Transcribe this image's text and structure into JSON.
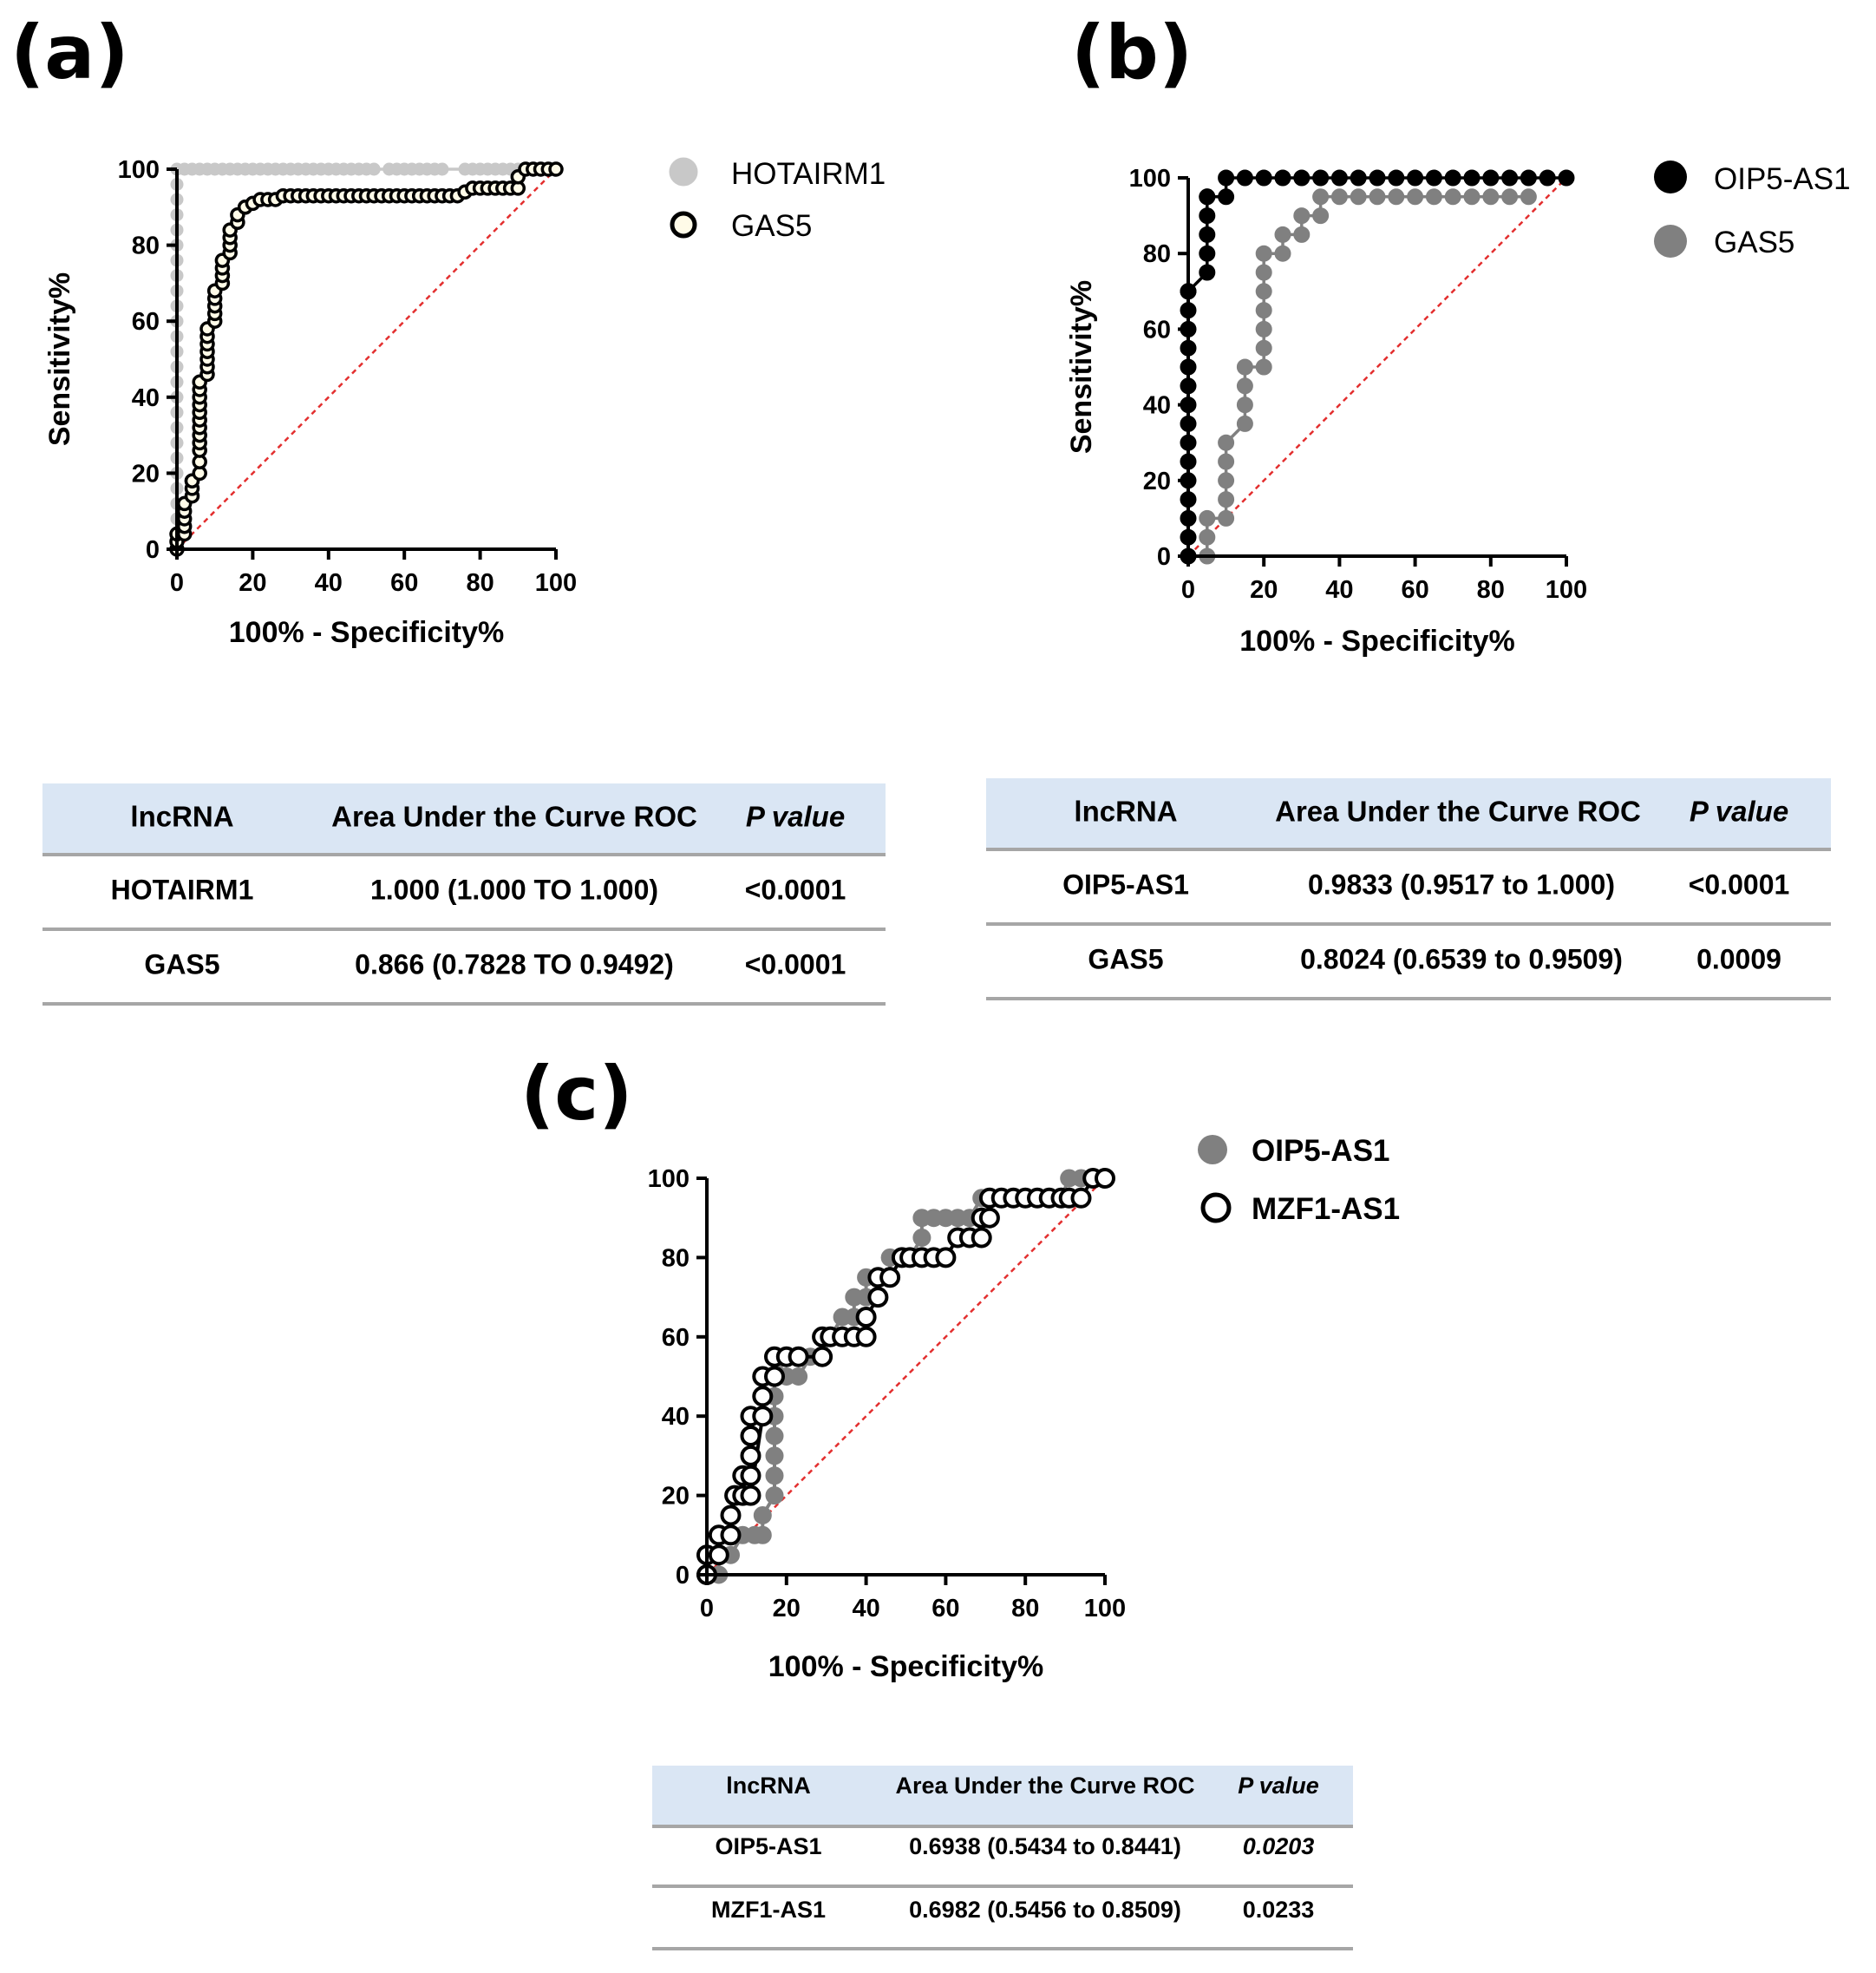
{
  "chart_data": [
    {
      "type": "scatter",
      "panel_label": "(a)",
      "xlabel": "100% - Specificity%",
      "ylabel": "Sensitivity%",
      "xlim": [
        0,
        100
      ],
      "ylim": [
        0,
        100
      ],
      "xticks": [
        0,
        20,
        40,
        60,
        80,
        100
      ],
      "yticks": [
        0,
        20,
        40,
        60,
        80,
        100
      ],
      "diagonal_color": "#e32f2f",
      "series": [
        {
          "name": "HOTAIRM1",
          "style": "filled",
          "fill": "#c8c8c8",
          "stroke": "#c8c8c8",
          "x": [
            0,
            0,
            0,
            0,
            0,
            0,
            0,
            0,
            0,
            0,
            0,
            0,
            0,
            0,
            0,
            0,
            0,
            0,
            0,
            0,
            0,
            0,
            0,
            0,
            0,
            0,
            2,
            4,
            6,
            8,
            10,
            12,
            14,
            16,
            18,
            20,
            22,
            24,
            26,
            28,
            30,
            32,
            34,
            36,
            38,
            40,
            42,
            44,
            46,
            48,
            50,
            52,
            56,
            58,
            60,
            62,
            64,
            66,
            68,
            70,
            76,
            78,
            80,
            82,
            84,
            86,
            88,
            90,
            92,
            94,
            96,
            98
          ],
          "y": [
            0,
            4,
            8,
            12,
            16,
            20,
            24,
            28,
            32,
            36,
            40,
            44,
            48,
            52,
            56,
            60,
            64,
            68,
            72,
            76,
            80,
            84,
            88,
            92,
            96,
            100,
            100,
            100,
            100,
            100,
            100,
            100,
            100,
            100,
            100,
            100,
            100,
            100,
            100,
            100,
            100,
            100,
            100,
            100,
            100,
            100,
            100,
            100,
            100,
            100,
            100,
            100,
            100,
            100,
            100,
            100,
            100,
            100,
            100,
            100,
            100,
            100,
            100,
            100,
            100,
            100,
            100,
            100,
            100,
            100,
            100,
            100
          ]
        },
        {
          "name": "GAS5",
          "style": "open",
          "fill": "#fffbe8",
          "stroke": "#000000",
          "x": [
            0,
            0,
            0,
            2,
            2,
            2,
            2,
            2,
            4,
            4,
            4,
            4,
            6,
            6,
            6,
            6,
            6,
            6,
            6,
            6,
            6,
            6,
            6,
            6,
            8,
            8,
            8,
            8,
            8,
            8,
            8,
            10,
            10,
            10,
            10,
            10,
            12,
            12,
            12,
            12,
            14,
            14,
            14,
            14,
            16,
            16,
            18,
            18,
            20,
            22,
            24,
            26,
            28,
            30,
            32,
            34,
            36,
            38,
            40,
            42,
            44,
            46,
            48,
            50,
            52,
            54,
            56,
            58,
            60,
            62,
            64,
            66,
            68,
            70,
            72,
            74,
            76,
            78,
            80,
            82,
            84,
            86,
            88,
            90,
            90,
            92,
            94,
            96,
            98,
            100
          ],
          "y": [
            0,
            2,
            4,
            4,
            6,
            8,
            10,
            12,
            14,
            16,
            18,
            18,
            20,
            23,
            26,
            28,
            30,
            32,
            34,
            36,
            38,
            40,
            42,
            44,
            46,
            48,
            50,
            52,
            54,
            56,
            58,
            60,
            62,
            64,
            66,
            68,
            70,
            72,
            74,
            76,
            78,
            80,
            82,
            84,
            86,
            88,
            90,
            90,
            91,
            92,
            92,
            92,
            93,
            93,
            93,
            93,
            93,
            93,
            93,
            93,
            93,
            93,
            93,
            93,
            93,
            93,
            93,
            93,
            93,
            93,
            93,
            93,
            93,
            93,
            93,
            93,
            94,
            95,
            95,
            95,
            95,
            95,
            95,
            95,
            98,
            100,
            100,
            100,
            100,
            100
          ]
        }
      ]
    },
    {
      "type": "scatter",
      "panel_label": "(b)",
      "xlabel": "100% - Specificity%",
      "ylabel": "Sensitivity%",
      "xlim": [
        0,
        100
      ],
      "ylim": [
        0,
        100
      ],
      "xticks": [
        0,
        20,
        40,
        60,
        80,
        100
      ],
      "yticks": [
        0,
        20,
        40,
        60,
        80,
        100
      ],
      "diagonal_color": "#e32f2f",
      "series": [
        {
          "name": "OIP5-AS1",
          "style": "filled",
          "fill": "#000000",
          "stroke": "#000000",
          "x": [
            0,
            0,
            0,
            0,
            0,
            0,
            0,
            0,
            0,
            0,
            0,
            0,
            0,
            0,
            0,
            0,
            5,
            5,
            5,
            5,
            5,
            5,
            10,
            10,
            15,
            20,
            25,
            30,
            35,
            40,
            45,
            50,
            55,
            60,
            65,
            70,
            75,
            80,
            85,
            90,
            95,
            100
          ],
          "y": [
            0,
            5,
            10,
            15,
            20,
            25,
            30,
            35,
            40,
            45,
            50,
            55,
            60,
            65,
            70,
            70,
            75,
            80,
            85,
            90,
            95,
            95,
            95,
            100,
            100,
            100,
            100,
            100,
            100,
            100,
            100,
            100,
            100,
            100,
            100,
            100,
            100,
            100,
            100,
            100,
            100,
            100
          ]
        },
        {
          "name": "GAS5",
          "style": "filled",
          "fill": "#808080",
          "stroke": "#808080",
          "x": [
            5,
            5,
            5,
            10,
            10,
            10,
            10,
            10,
            15,
            15,
            15,
            15,
            20,
            20,
            20,
            20,
            20,
            20,
            20,
            25,
            25,
            30,
            30,
            35,
            35,
            40,
            45,
            50,
            55,
            60,
            65,
            70,
            75,
            80,
            85,
            90
          ],
          "y": [
            0,
            5,
            10,
            10,
            15,
            20,
            25,
            30,
            35,
            40,
            45,
            50,
            50,
            55,
            60,
            65,
            70,
            75,
            80,
            80,
            85,
            85,
            90,
            90,
            95,
            95,
            95,
            95,
            95,
            95,
            95,
            95,
            95,
            95,
            95,
            95
          ]
        }
      ]
    },
    {
      "type": "scatter",
      "panel_label": "(c)",
      "xlabel": "100% - Specificity%",
      "ylabel": "",
      "xlim": [
        0,
        100
      ],
      "ylim": [
        0,
        100
      ],
      "xticks": [
        0,
        20,
        40,
        60,
        80,
        100
      ],
      "yticks": [
        0,
        20,
        40,
        60,
        80,
        100
      ],
      "diagonal_color": "#e32f2f",
      "series": [
        {
          "name": "OIP5-AS1",
          "style": "filled",
          "fill": "#808080",
          "stroke": "#808080",
          "x": [
            0,
            3,
            3,
            6,
            9,
            12,
            14,
            14,
            17,
            17,
            17,
            17,
            17,
            17,
            17,
            17,
            20,
            23,
            26,
            29,
            31,
            34,
            37,
            37,
            40,
            40,
            43,
            46,
            46,
            49,
            51,
            54,
            54,
            57,
            60,
            63,
            66,
            69,
            71,
            74,
            77,
            80,
            83,
            86,
            89,
            91,
            94,
            97,
            100
          ],
          "y": [
            0,
            0,
            5,
            5,
            10,
            10,
            10,
            15,
            20,
            25,
            30,
            35,
            40,
            45,
            50,
            55,
            50,
            50,
            55,
            55,
            60,
            65,
            65,
            70,
            70,
            75,
            75,
            75,
            80,
            80,
            80,
            85,
            90,
            90,
            90,
            90,
            90,
            95,
            95,
            95,
            95,
            95,
            95,
            95,
            95,
            100,
            100,
            100,
            100
          ],
          "x_note": "read from plot"
        },
        {
          "name": "MZF1-AS1",
          "style": "open",
          "fill": "#ffffff",
          "stroke": "#000000",
          "x": [
            0,
            0,
            3,
            3,
            6,
            6,
            7,
            9,
            9,
            11,
            11,
            11,
            11,
            11,
            14,
            14,
            14,
            17,
            17,
            20,
            23,
            29,
            29,
            31,
            34,
            37,
            40,
            40,
            43,
            43,
            46,
            49,
            51,
            54,
            57,
            60,
            63,
            66,
            69,
            69,
            71,
            71,
            74,
            77,
            80,
            83,
            86,
            89,
            91,
            94,
            97,
            100
          ],
          "y": [
            0,
            5,
            5,
            10,
            10,
            15,
            20,
            20,
            25,
            25,
            30,
            35,
            40,
            20,
            40,
            45,
            50,
            50,
            55,
            55,
            55,
            55,
            60,
            60,
            60,
            60,
            60,
            65,
            70,
            75,
            75,
            80,
            80,
            80,
            80,
            80,
            85,
            85,
            85,
            90,
            90,
            95,
            95,
            95,
            95,
            95,
            95,
            95,
            95,
            95,
            100,
            100
          ]
        }
      ]
    }
  ],
  "tables": {
    "a": {
      "headers": [
        "lncRNA",
        "Area Under the Curve ROC",
        "P value"
      ],
      "rows": [
        [
          "HOTAIRM1",
          "1.000 (1.000 TO 1.000)",
          "<0.0001"
        ],
        [
          "GAS5",
          "0.866 (0.7828 TO 0.9492)",
          "<0.0001"
        ]
      ]
    },
    "b": {
      "headers": [
        "lncRNA",
        "Area Under the Curve ROC",
        "P value"
      ],
      "rows": [
        [
          "OIP5-AS1",
          "0.9833 (0.9517 to 1.000)",
          "<0.0001"
        ],
        [
          "GAS5",
          "0.8024 (0.6539 to 0.9509)",
          "0.0009"
        ]
      ]
    },
    "c": {
      "headers": [
        "lncRNA",
        "Area Under the Curve ROC",
        "P value"
      ],
      "rows": [
        [
          "OIP5-AS1",
          "0.6938 (0.5434 to 0.8441)",
          "0.0203"
        ],
        [
          "MZF1-AS1",
          "0.6982 (0.5456 to 0.8509)",
          "0.0233"
        ]
      ]
    },
    "header_bg": "#dae6f4",
    "rule_color": "#a6a6a6"
  }
}
